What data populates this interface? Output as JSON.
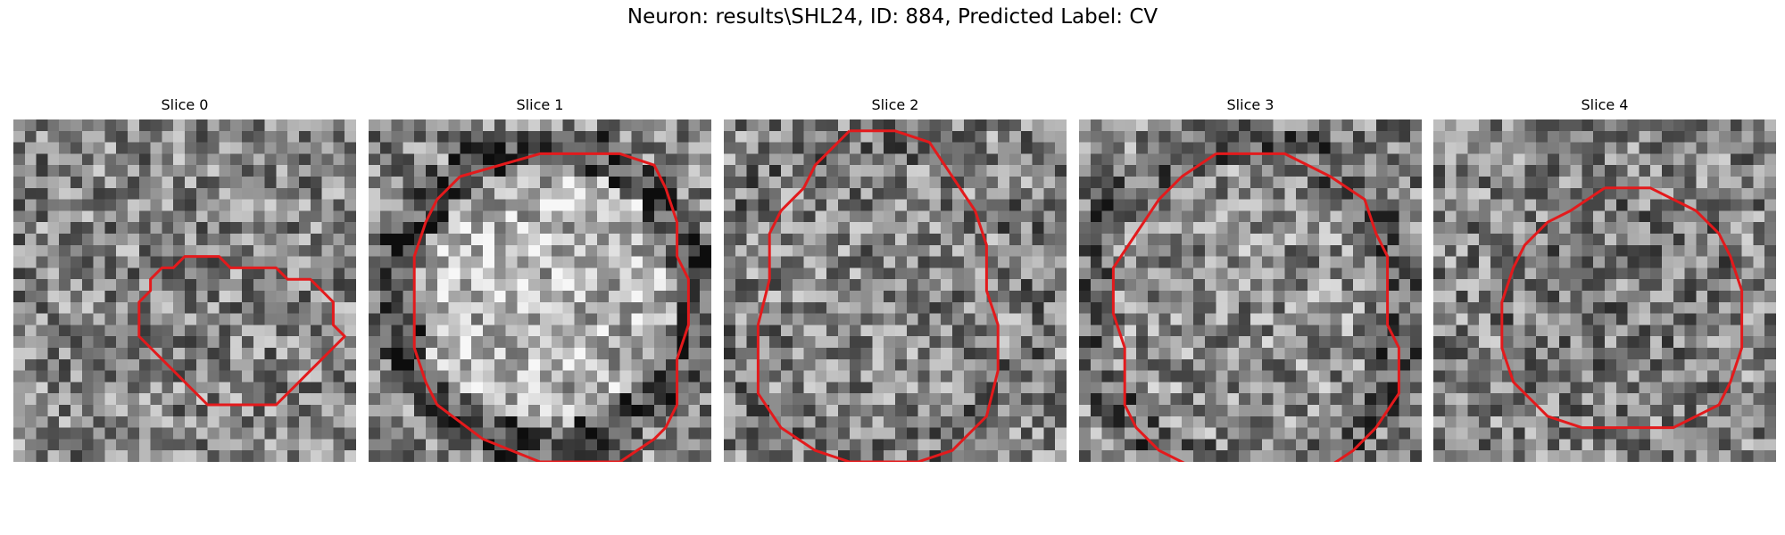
{
  "figure": {
    "title": "Neuron: results\\SHL24, ID: 884, Predicted Label: CV",
    "contour_color": "#e31a1c",
    "colormap": "gray"
  },
  "panels": [
    {
      "title": "Slice 0",
      "contour": [
        [
          15.5,
          11.5
        ],
        [
          17.5,
          11.5
        ],
        [
          18.5,
          12.5
        ],
        [
          22.5,
          12.5
        ],
        [
          23.5,
          13.5
        ],
        [
          25.5,
          13.5
        ],
        [
          26.5,
          14.5
        ],
        [
          27.5,
          15.5
        ],
        [
          27.5,
          17.5
        ],
        [
          28.5,
          18.5
        ],
        [
          27.5,
          19.5
        ],
        [
          26.5,
          20.5
        ],
        [
          25.5,
          21.5
        ],
        [
          24.5,
          22.5
        ],
        [
          23.5,
          23.5
        ],
        [
          22.5,
          24.5
        ],
        [
          16.5,
          24.5
        ],
        [
          15.5,
          23.5
        ],
        [
          14.5,
          22.5
        ],
        [
          13.5,
          21.5
        ],
        [
          12.5,
          20.5
        ],
        [
          11.5,
          19.5
        ],
        [
          10.5,
          18.5
        ],
        [
          10.5,
          15.5
        ],
        [
          11.5,
          14.5
        ],
        [
          11.5,
          13.5
        ],
        [
          12.5,
          12.5
        ],
        [
          13.5,
          12.5
        ],
        [
          14.5,
          11.5
        ],
        [
          15.5,
          11.5
        ]
      ]
    },
    {
      "title": "Slice 1",
      "contour": [
        [
          7.5,
          4.5
        ],
        [
          14.5,
          2.5
        ],
        [
          21.5,
          2.5
        ],
        [
          24.5,
          3.5
        ],
        [
          25.5,
          5.5
        ],
        [
          26.5,
          8.5
        ],
        [
          26.5,
          11.5
        ],
        [
          27.5,
          13.5
        ],
        [
          27.5,
          17.5
        ],
        [
          26.5,
          20.5
        ],
        [
          26.5,
          24.5
        ],
        [
          25.5,
          26.5
        ],
        [
          24.5,
          27.5
        ],
        [
          21.5,
          29.5
        ],
        [
          14.5,
          29.5
        ],
        [
          9.5,
          27.5
        ],
        [
          5.5,
          24.5
        ],
        [
          4.5,
          22.5
        ],
        [
          3.5,
          19.5
        ],
        [
          3.5,
          11.5
        ],
        [
          4.5,
          8.5
        ],
        [
          5.5,
          6.5
        ],
        [
          7.5,
          4.5
        ]
      ]
    },
    {
      "title": "Slice 2",
      "contour": [
        [
          10.5,
          0.5
        ],
        [
          14.5,
          0.5
        ],
        [
          17.5,
          1.5
        ],
        [
          19.5,
          4.5
        ],
        [
          21.5,
          7.5
        ],
        [
          22.5,
          10.5
        ],
        [
          22.5,
          14.5
        ],
        [
          23.5,
          17.5
        ],
        [
          23.5,
          21.5
        ],
        [
          22.5,
          25.5
        ],
        [
          19.5,
          28.5
        ],
        [
          16.5,
          29.5
        ],
        [
          10.5,
          29.5
        ],
        [
          7.5,
          28.5
        ],
        [
          4.5,
          26.5
        ],
        [
          2.5,
          23.5
        ],
        [
          2.5,
          17.5
        ],
        [
          3.5,
          13.5
        ],
        [
          3.5,
          9.5
        ],
        [
          4.5,
          7.5
        ],
        [
          6.5,
          5.5
        ],
        [
          7.5,
          3.5
        ],
        [
          10.5,
          0.5
        ]
      ]
    },
    {
      "title": "Slice 3",
      "contour": [
        [
          11.5,
          2.5
        ],
        [
          17.5,
          2.5
        ],
        [
          21.5,
          4.5
        ],
        [
          24.5,
          6.5
        ],
        [
          25.5,
          9.5
        ],
        [
          26.5,
          11.5
        ],
        [
          26.5,
          17.5
        ],
        [
          27.5,
          19.5
        ],
        [
          27.5,
          23.5
        ],
        [
          25.5,
          26.5
        ],
        [
          23.5,
          28.5
        ],
        [
          20.5,
          30.5
        ],
        [
          15.5,
          31.5
        ],
        [
          10.5,
          30.5
        ],
        [
          8.5,
          29.5
        ],
        [
          6.5,
          28.5
        ],
        [
          4.5,
          26.5
        ],
        [
          3.5,
          24.5
        ],
        [
          3.5,
          19.5
        ],
        [
          2.5,
          16.5
        ],
        [
          2.5,
          12.5
        ],
        [
          4.5,
          9.5
        ],
        [
          6.5,
          6.5
        ],
        [
          8.5,
          4.5
        ],
        [
          11.5,
          2.5
        ]
      ]
    },
    {
      "title": "Slice 4",
      "contour": [
        [
          14.5,
          5.5
        ],
        [
          18.5,
          5.5
        ],
        [
          22.5,
          7.5
        ],
        [
          24.5,
          9.5
        ],
        [
          25.5,
          11.5
        ],
        [
          26.5,
          14.5
        ],
        [
          26.5,
          19.5
        ],
        [
          25.5,
          22.5
        ],
        [
          24.5,
          24.5
        ],
        [
          22.5,
          25.5
        ],
        [
          20.5,
          26.5
        ],
        [
          17.5,
          26.5
        ],
        [
          12.5,
          26.5
        ],
        [
          9.5,
          25.5
        ],
        [
          6.5,
          22.5
        ],
        [
          5.5,
          19.5
        ],
        [
          5.5,
          15.5
        ],
        [
          6.5,
          12.5
        ],
        [
          7.5,
          10.5
        ],
        [
          9.5,
          8.5
        ],
        [
          11.5,
          7.5
        ],
        [
          14.5,
          5.5
        ]
      ]
    }
  ]
}
